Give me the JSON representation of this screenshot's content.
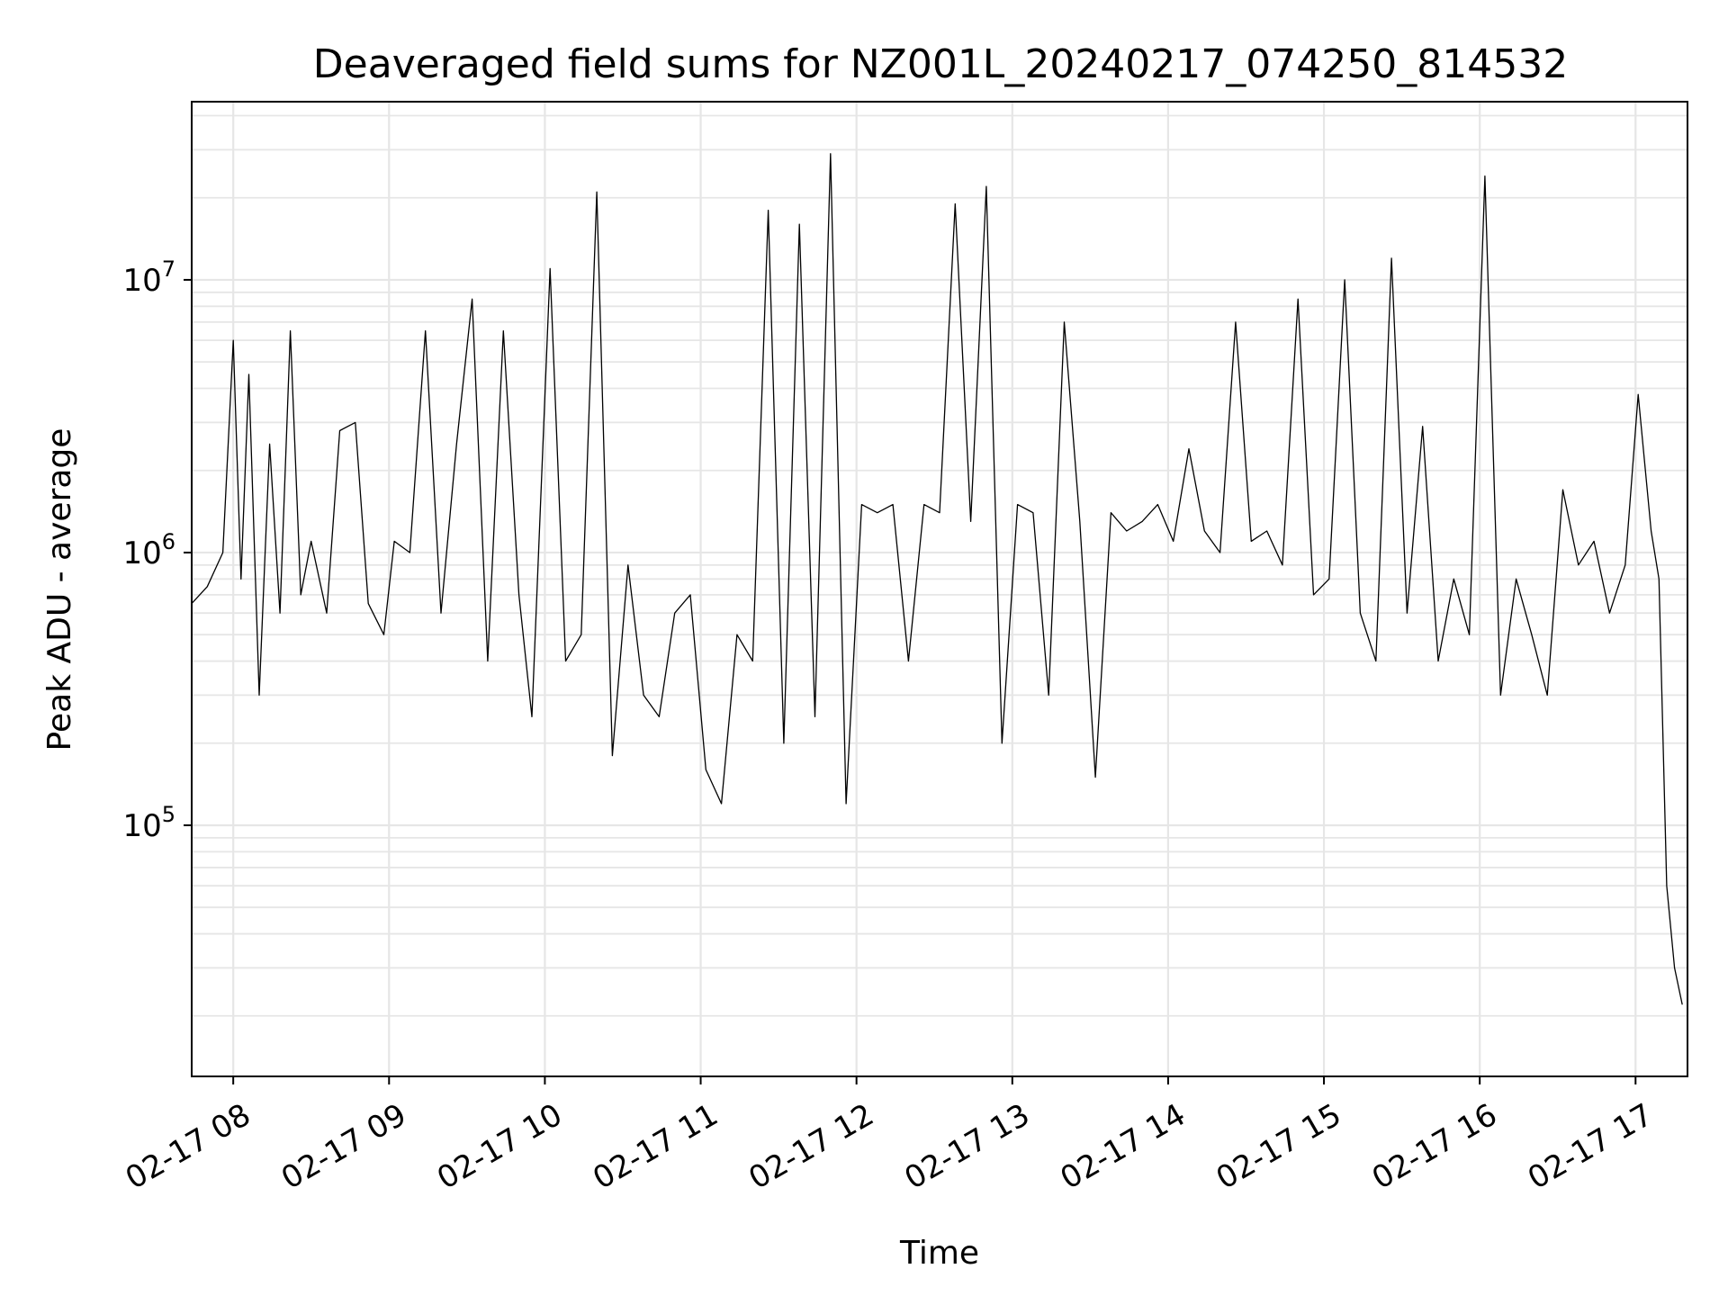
{
  "chart_data": {
    "type": "line",
    "title": "Deaveraged field sums for NZ001L_20240217_074250_814532",
    "xlabel": "Time",
    "ylabel": "Peak ADU - average",
    "yscale": "log",
    "ylim": [
      12000,
      45000000
    ],
    "xlim": [
      "2024-02-17 07:44",
      "2024-02-17 17:20"
    ],
    "x_ticks": [
      "02-17 08",
      "02-17 09",
      "02-17 10",
      "02-17 11",
      "02-17 12",
      "02-17 13",
      "02-17 14",
      "02-17 15",
      "02-17 16",
      "02-17 17"
    ],
    "y_ticks": [
      {
        "base": "10",
        "exp": "5",
        "value": 100000
      },
      {
        "base": "10",
        "exp": "6",
        "value": 1000000
      },
      {
        "base": "10",
        "exp": "7",
        "value": 10000000
      }
    ],
    "grid": "major and minor",
    "series_color": "#000000",
    "series": [
      {
        "x": [
          "2024-02-17 07:44",
          "2024-02-17 07:50",
          "2024-02-17 07:56",
          "2024-02-17 08:00",
          "2024-02-17 08:03",
          "2024-02-17 08:06",
          "2024-02-17 08:10",
          "2024-02-17 08:14",
          "2024-02-17 08:18",
          "2024-02-17 08:22",
          "2024-02-17 08:26",
          "2024-02-17 08:30",
          "2024-02-17 08:36",
          "2024-02-17 08:41",
          "2024-02-17 08:47",
          "2024-02-17 08:52",
          "2024-02-17 08:58",
          "2024-02-17 09:02",
          "2024-02-17 09:08",
          "2024-02-17 09:14",
          "2024-02-17 09:20",
          "2024-02-17 09:26",
          "2024-02-17 09:32",
          "2024-02-17 09:38",
          "2024-02-17 09:44",
          "2024-02-17 09:50",
          "2024-02-17 09:55",
          "2024-02-17 10:02",
          "2024-02-17 10:08",
          "2024-02-17 10:14",
          "2024-02-17 10:20",
          "2024-02-17 10:26",
          "2024-02-17 10:32",
          "2024-02-17 10:38",
          "2024-02-17 10:44",
          "2024-02-17 10:50",
          "2024-02-17 10:56",
          "2024-02-17 11:02",
          "2024-02-17 11:08",
          "2024-02-17 11:14",
          "2024-02-17 11:20",
          "2024-02-17 11:26",
          "2024-02-17 11:32",
          "2024-02-17 11:38",
          "2024-02-17 11:44",
          "2024-02-17 11:50",
          "2024-02-17 11:56",
          "2024-02-17 12:02",
          "2024-02-17 12:08",
          "2024-02-17 12:14",
          "2024-02-17 12:20",
          "2024-02-17 12:26",
          "2024-02-17 12:32",
          "2024-02-17 12:38",
          "2024-02-17 12:44",
          "2024-02-17 12:50",
          "2024-02-17 12:56",
          "2024-02-17 13:02",
          "2024-02-17 13:08",
          "2024-02-17 13:14",
          "2024-02-17 13:20",
          "2024-02-17 13:26",
          "2024-02-17 13:32",
          "2024-02-17 13:38",
          "2024-02-17 13:44",
          "2024-02-17 13:50",
          "2024-02-17 13:56",
          "2024-02-17 14:02",
          "2024-02-17 14:08",
          "2024-02-17 14:14",
          "2024-02-17 14:20",
          "2024-02-17 14:26",
          "2024-02-17 14:32",
          "2024-02-17 14:38",
          "2024-02-17 14:44",
          "2024-02-17 14:50",
          "2024-02-17 14:56",
          "2024-02-17 15:02",
          "2024-02-17 15:08",
          "2024-02-17 15:14",
          "2024-02-17 15:20",
          "2024-02-17 15:26",
          "2024-02-17 15:32",
          "2024-02-17 15:38",
          "2024-02-17 15:44",
          "2024-02-17 15:50",
          "2024-02-17 15:56",
          "2024-02-17 16:02",
          "2024-02-17 16:08",
          "2024-02-17 16:14",
          "2024-02-17 16:20",
          "2024-02-17 16:26",
          "2024-02-17 16:32",
          "2024-02-17 16:38",
          "2024-02-17 16:44",
          "2024-02-17 16:50",
          "2024-02-17 16:56",
          "2024-02-17 17:01",
          "2024-02-17 17:06",
          "2024-02-17 17:09",
          "2024-02-17 17:12",
          "2024-02-17 17:15",
          "2024-02-17 17:18"
        ],
        "y": [
          650000,
          750000,
          1000000,
          6000000,
          800000,
          4500000,
          300000,
          2500000,
          600000,
          6500000,
          700000,
          1100000,
          600000,
          2800000,
          3000000,
          650000,
          500000,
          1100000,
          1000000,
          6500000,
          600000,
          2500000,
          8500000,
          400000,
          6500000,
          700000,
          250000,
          11000000,
          400000,
          500000,
          21000000,
          180000,
          900000,
          300000,
          250000,
          600000,
          700000,
          160000,
          120000,
          500000,
          400000,
          18000000,
          200000,
          16000000,
          250000,
          29000000,
          120000,
          1500000,
          1400000,
          1500000,
          400000,
          1500000,
          1400000,
          19000000,
          1300000,
          22000000,
          200000,
          1500000,
          1400000,
          300000,
          7000000,
          1300000,
          150000,
          1400000,
          1200000,
          1300000,
          1500000,
          1100000,
          2400000,
          1200000,
          1000000,
          7000000,
          1100000,
          1200000,
          900000,
          8500000,
          700000,
          800000,
          10000000,
          600000,
          400000,
          12000000,
          600000,
          2900000,
          400000,
          800000,
          500000,
          24000000,
          300000,
          800000,
          500000,
          300000,
          1700000,
          900000,
          1100000,
          600000,
          900000,
          3800000,
          1200000,
          800000,
          60000,
          30000,
          22000
        ]
      }
    ]
  }
}
